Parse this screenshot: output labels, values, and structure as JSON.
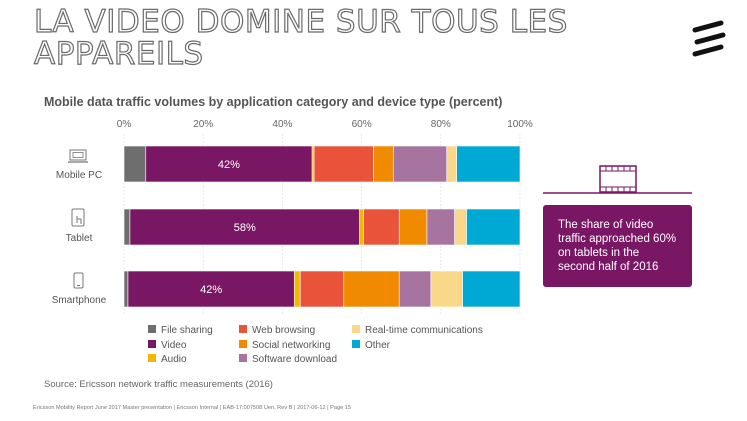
{
  "slide": {
    "title_line1": "LA VIDEO DOMINE SUR TOUS LES",
    "title_line2": "APPAREILS",
    "logo_icon": "ericsson-logo-icon",
    "callout_text": "The share of video traffic approached 60% on tablets in the second half of 2016",
    "callout_icon": "film-strip-icon",
    "source": "Source: Ericsson network traffic measurements (2016)",
    "footer": "Ericsson Mobility Report June  2017 Master presentation  |  Ericsson Internal  |  EAB-17:007508 Uen, Rev B  |  2017-06-12  |  Page 15"
  },
  "chart_data": {
    "type": "bar",
    "orientation": "horizontal",
    "stacked": true,
    "title": "Mobile data traffic volumes by application category and device type (percent)",
    "xlim": [
      0,
      100
    ],
    "x_ticks": [
      "0%",
      "20%",
      "40%",
      "60%",
      "80%",
      "100%"
    ],
    "tick_values": [
      0,
      20,
      40,
      60,
      80,
      100
    ],
    "categories": [
      "Mobile PC",
      "Tablet",
      "Smartphone"
    ],
    "category_icons": [
      "laptop-icon",
      "tablet-icon",
      "smartphone-icon"
    ],
    "grid": true,
    "legend_position": "bottom",
    "series": [
      {
        "name": "File sharing",
        "color": "#6e6e6e",
        "values": [
          5.5,
          1.5,
          1
        ]
      },
      {
        "name": "Video",
        "color": "#7a1765",
        "values": [
          42,
          58,
          42
        ],
        "labels": [
          "42%",
          "58%",
          "42%"
        ]
      },
      {
        "name": "Audio",
        "color": "#f2b800",
        "values": [
          0.5,
          1,
          1.5
        ]
      },
      {
        "name": "Web browsing",
        "color": "#e8533a",
        "values": [
          15,
          9,
          11
        ]
      },
      {
        "name": "Social networking",
        "color": "#f08a00",
        "values": [
          5,
          7,
          14
        ]
      },
      {
        "name": "Software download",
        "color": "#a7739f",
        "values": [
          13.5,
          7,
          8
        ]
      },
      {
        "name": "Real-time communications",
        "color": "#fad88a",
        "values": [
          2.5,
          3,
          8
        ]
      },
      {
        "name": "Other",
        "color": "#00a9d4",
        "values": [
          16,
          13.5,
          14.5
        ]
      }
    ]
  }
}
